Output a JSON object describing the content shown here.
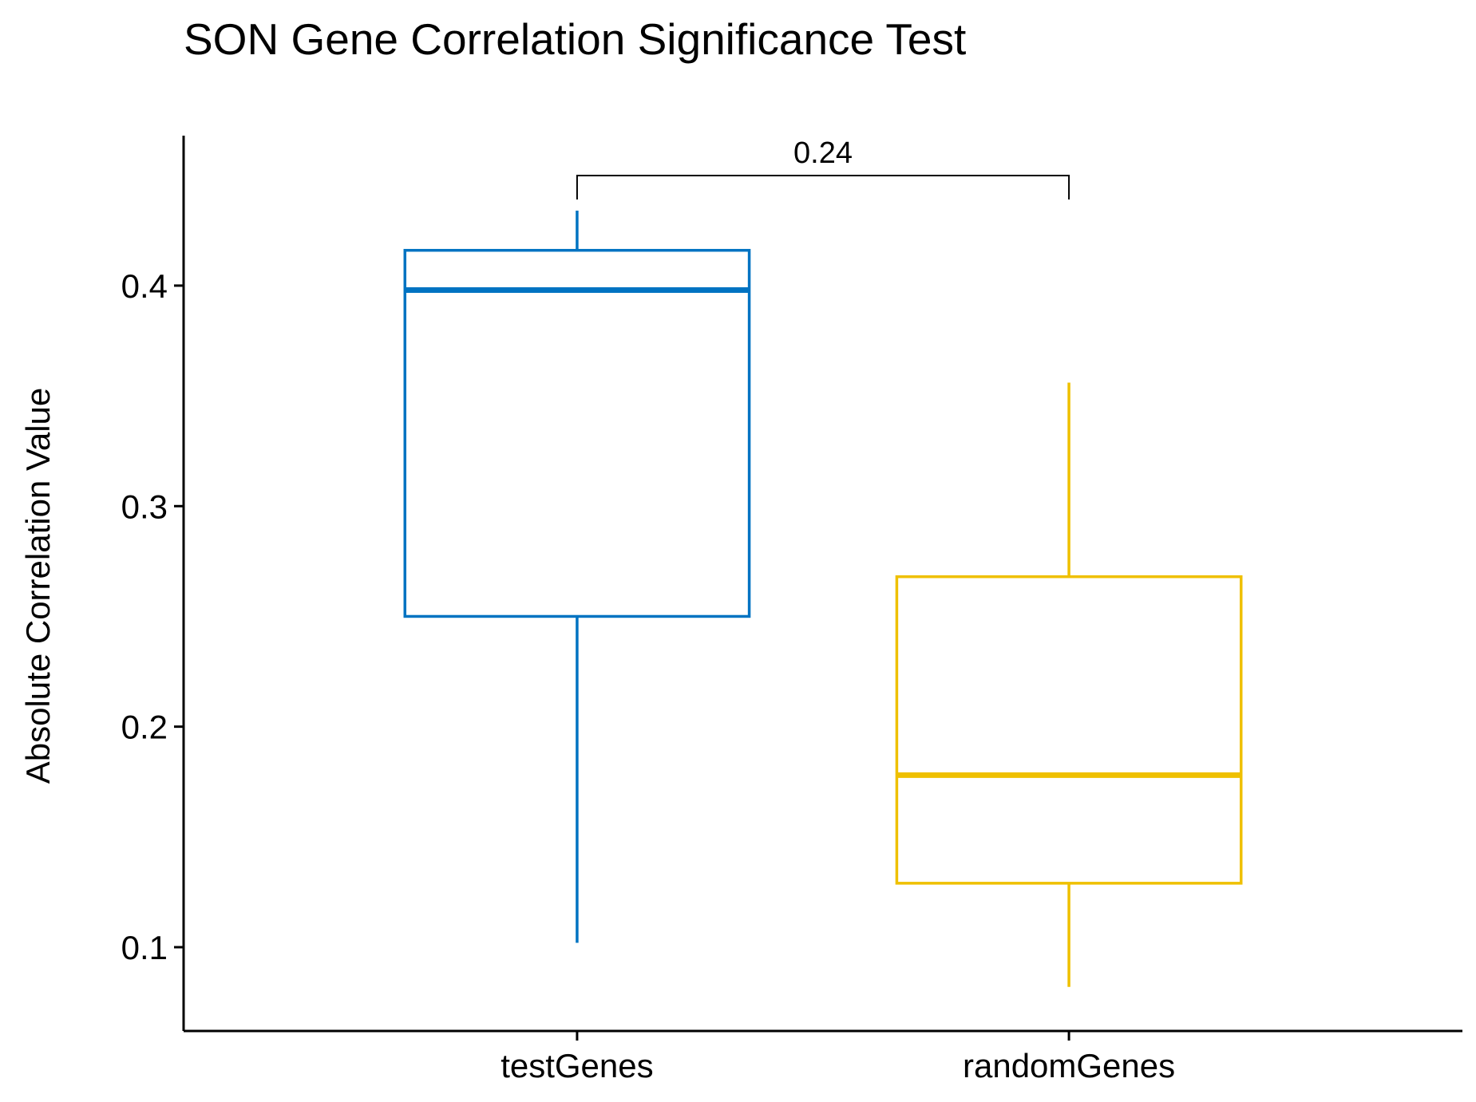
{
  "chart_data": {
    "type": "box",
    "title": "SON Gene Correlation Significance Test",
    "xlabel": "",
    "ylabel": "Absolute Correlation Value",
    "ylim": [
      0.062,
      0.468
    ],
    "yticks": [
      0.1,
      0.2,
      0.3,
      0.4
    ],
    "ytick_labels": [
      "0.1",
      "0.2",
      "0.3",
      "0.4"
    ],
    "categories": [
      "testGenes",
      "randomGenes"
    ],
    "series": [
      {
        "category": "testGenes",
        "color": "#0073C2",
        "whisker_low": 0.102,
        "q1": 0.25,
        "median": 0.398,
        "q3": 0.416,
        "whisker_high": 0.434
      },
      {
        "category": "randomGenes",
        "color": "#EFC000",
        "whisker_low": 0.082,
        "q1": 0.129,
        "median": 0.178,
        "q3": 0.268,
        "whisker_high": 0.356
      }
    ],
    "comparison": {
      "groups": [
        "testGenes",
        "randomGenes"
      ],
      "p_value": "0.24"
    },
    "grid": false,
    "legend": "none"
  }
}
